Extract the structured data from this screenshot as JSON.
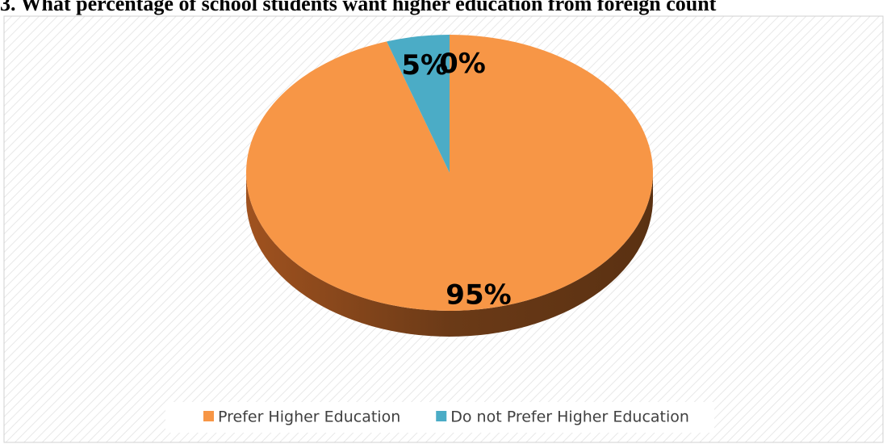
{
  "chart_data": {
    "type": "pie",
    "title": "3. What percentage of school students want higher education from foreign count",
    "categories": [
      "Prefer Higher Education",
      "Do not Prefer Higher Education",
      null
    ],
    "values": [
      95,
      5,
      0
    ],
    "value_labels": [
      "95%",
      "5%",
      "0%"
    ],
    "colors": [
      "#f79646",
      "#4bacc6",
      "#9bbb59"
    ],
    "legend": "bottom"
  }
}
